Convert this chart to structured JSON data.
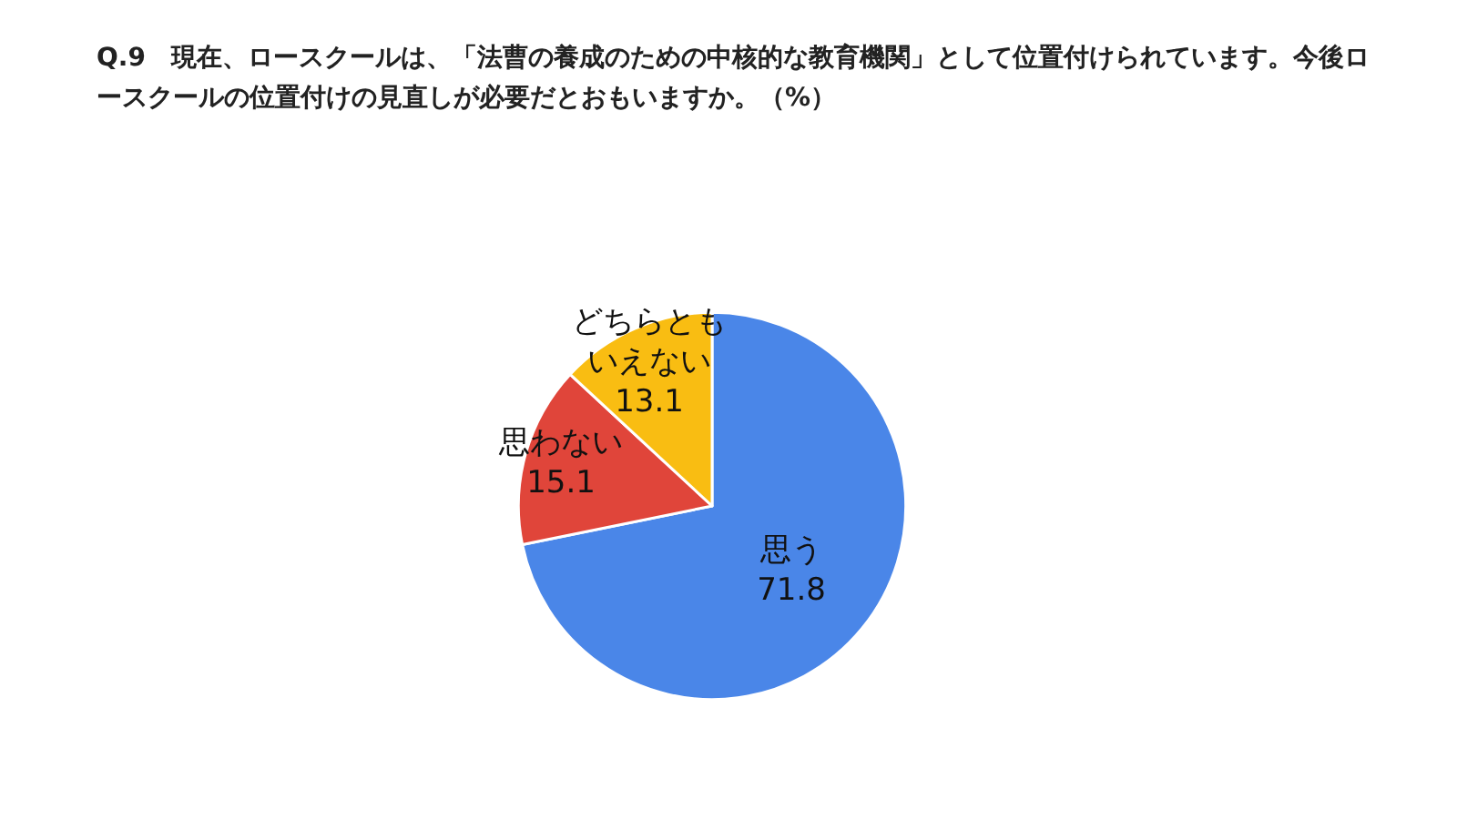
{
  "chart_data": {
    "type": "pie",
    "title": "Q.9　現在、ロースクールは、「法曹の養成のための中核的な教育機関」として位置付けられています。今後ロースクールの位置付けの見直しが必要だとおもいますか。（%）",
    "categories": [
      "思う",
      "思わない",
      "どちらともいえない"
    ],
    "values": [
      71.8,
      15.1,
      13.1
    ],
    "colors": [
      "#4a86e8",
      "#e0453a",
      "#f9bd12"
    ],
    "data_labels": true,
    "legend": false
  }
}
